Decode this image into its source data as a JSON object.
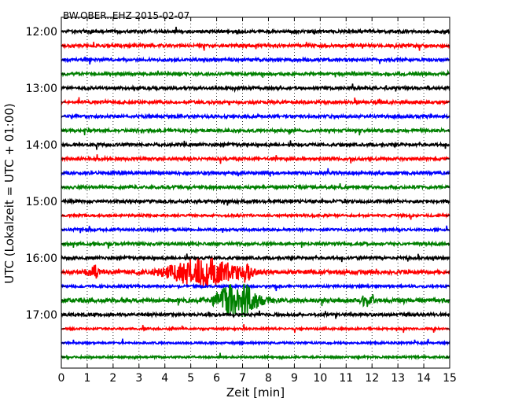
{
  "chart_data": {
    "type": "line",
    "title": "BW.OBER..EHZ 2015-02-07",
    "xlabel": "Zeit  [min]",
    "ylabel": "UTC (Lokalzeit = UTC + 01:00)",
    "xlim": [
      0,
      15
    ],
    "x_ticks": [
      "0",
      "1",
      "2",
      "3",
      "4",
      "5",
      "6",
      "7",
      "8",
      "9",
      "10",
      "11",
      "12",
      "13",
      "14",
      "15"
    ],
    "y_tick_labels": [
      "12:00",
      "13:00",
      "14:00",
      "15:00",
      "16:00",
      "17:00"
    ],
    "grid": "vertical dotted lines at each minute",
    "trace_colors": [
      "#000000",
      "#ff0000",
      "#0000ff",
      "#008000"
    ],
    "traces": [
      {
        "start": "12:00",
        "color": "#000000",
        "amplitude": 0.15
      },
      {
        "start": "12:15",
        "color": "#ff0000",
        "amplitude": 0.15
      },
      {
        "start": "12:30",
        "color": "#0000ff",
        "amplitude": 0.15
      },
      {
        "start": "12:45",
        "color": "#008000",
        "amplitude": 0.15
      },
      {
        "start": "13:00",
        "color": "#000000",
        "amplitude": 0.15
      },
      {
        "start": "13:15",
        "color": "#ff0000",
        "amplitude": 0.15
      },
      {
        "start": "13:30",
        "color": "#0000ff",
        "amplitude": 0.15
      },
      {
        "start": "13:45",
        "color": "#008000",
        "amplitude": 0.15
      },
      {
        "start": "14:00",
        "color": "#000000",
        "amplitude": 0.15
      },
      {
        "start": "14:15",
        "color": "#ff0000",
        "amplitude": 0.15
      },
      {
        "start": "14:30",
        "color": "#0000ff",
        "amplitude": 0.15
      },
      {
        "start": "14:45",
        "color": "#008000",
        "amplitude": 0.15
      },
      {
        "start": "15:00",
        "color": "#000000",
        "amplitude": 0.15
      },
      {
        "start": "15:15",
        "color": "#ff0000",
        "amplitude": 0.12
      },
      {
        "start": "15:30",
        "color": "#0000ff",
        "amplitude": 0.12
      },
      {
        "start": "15:45",
        "color": "#008000",
        "amplitude": 0.15
      },
      {
        "start": "16:00",
        "color": "#000000",
        "amplitude": 0.15
      },
      {
        "start": "16:15",
        "color": "#ff0000",
        "amplitude": 0.2,
        "events": [
          {
            "minute": 1.3,
            "amplitude": 0.6,
            "duration": 0.3
          },
          {
            "minute": 5.5,
            "amplitude": 1.5,
            "duration": 1.3
          },
          {
            "minute": 7.2,
            "amplitude": 0.5,
            "duration": 0.15
          }
        ]
      },
      {
        "start": "16:30",
        "color": "#0000ff",
        "amplitude": 0.12
      },
      {
        "start": "16:45",
        "color": "#008000",
        "amplitude": 0.2,
        "events": [
          {
            "minute": 6.8,
            "amplitude": 1.8,
            "duration": 0.8
          },
          {
            "minute": 11.8,
            "amplitude": 0.6,
            "duration": 0.2
          }
        ]
      },
      {
        "start": "17:00",
        "color": "#000000",
        "amplitude": 0.15
      },
      {
        "start": "17:15",
        "color": "#ff0000",
        "amplitude": 0.1
      },
      {
        "start": "17:30",
        "color": "#0000ff",
        "amplitude": 0.1
      },
      {
        "start": "17:45",
        "color": "#008000",
        "amplitude": 0.1
      }
    ]
  }
}
